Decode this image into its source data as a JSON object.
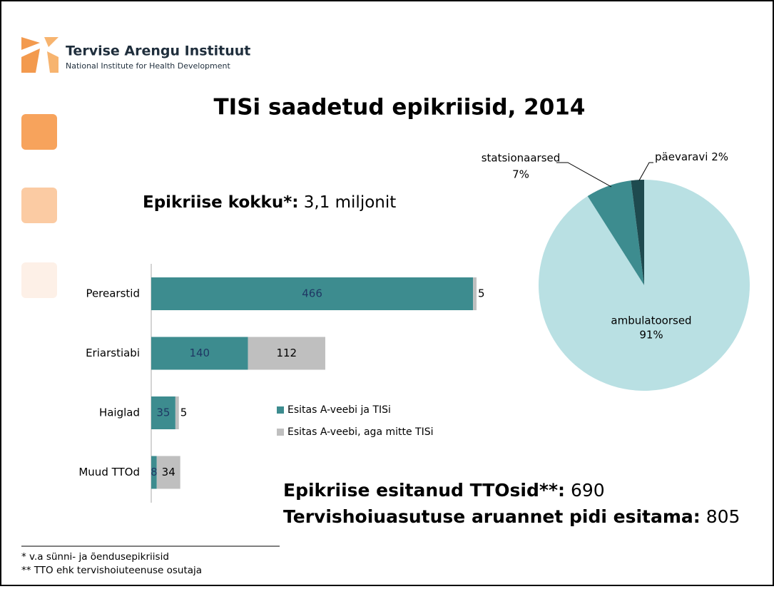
{
  "header": {
    "org": "Tervise Arengu Instituut",
    "org_en": "National Institute for Health Development"
  },
  "title": "TISi saadetud epikriisid, 2014",
  "total": {
    "label": "Epikriise kokku*:",
    "value": "3,1 miljonit"
  },
  "chart_data": [
    {
      "type": "bar",
      "stacked": true,
      "categories": [
        "Perearstid",
        "Eriarstiabi",
        "Haiglad",
        "Muud TTOd"
      ],
      "series": [
        {
          "name": "Esitas A-veebi ja TISi",
          "color": "#3d8c8f",
          "values": [
            466,
            140,
            35,
            8
          ]
        },
        {
          "name": "Esitas A-veebi, aga mitte TISi",
          "color": "#bfbfbf",
          "values": [
            5,
            112,
            5,
            34
          ]
        }
      ]
    },
    {
      "type": "pie",
      "categories": [
        "ambulatoorsed",
        "statsionaarsed",
        "päevaravi"
      ],
      "values": [
        91,
        7,
        2
      ],
      "value_labels": [
        "91%",
        "7%",
        "2%"
      ],
      "colors": [
        "#b9e0e3",
        "#3d8c8f",
        "#1e4a4f"
      ]
    }
  ],
  "summary": [
    {
      "label": "Epikriise esitanud TTOsid**:",
      "value": 690
    },
    {
      "label": "Tervishoiuasutuse aruannet pidi esitama:",
      "value": 805
    }
  ],
  "footnotes": [
    "* v.a sünni- ja õendusepikriisid",
    "** TTO ehk tervishoiuteenuse osutaja"
  ]
}
